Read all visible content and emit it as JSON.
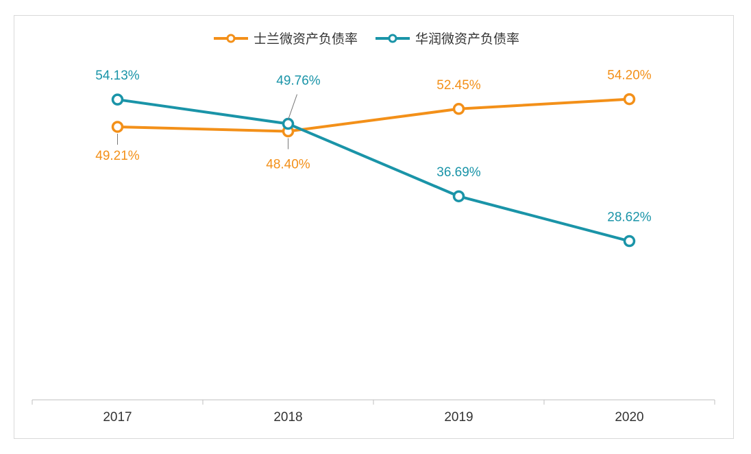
{
  "chart_data": {
    "type": "line",
    "title": "",
    "xlabel": "",
    "ylabel": "",
    "categories": [
      "2017",
      "2018",
      "2019",
      "2020"
    ],
    "ylim": [
      0,
      54.4
    ],
    "grid": false,
    "legend_position": "top",
    "series": [
      {
        "name": "士兰微资产负债率",
        "color": "#F39019",
        "values": [
          49.21,
          48.4,
          52.45,
          54.2
        ],
        "labels": [
          "49.21%",
          "48.40%",
          "52.45%",
          "54.20%"
        ],
        "label_pos": [
          "below",
          "below",
          "above",
          "above"
        ]
      },
      {
        "name": "华润微资产负债率",
        "color": "#1A94A8",
        "values": [
          54.13,
          49.76,
          36.69,
          28.62
        ],
        "labels": [
          "54.13%",
          "49.76%",
          "36.69%",
          "28.62%"
        ],
        "label_pos": [
          "above",
          "above-leader",
          "above",
          "above"
        ]
      }
    ]
  }
}
